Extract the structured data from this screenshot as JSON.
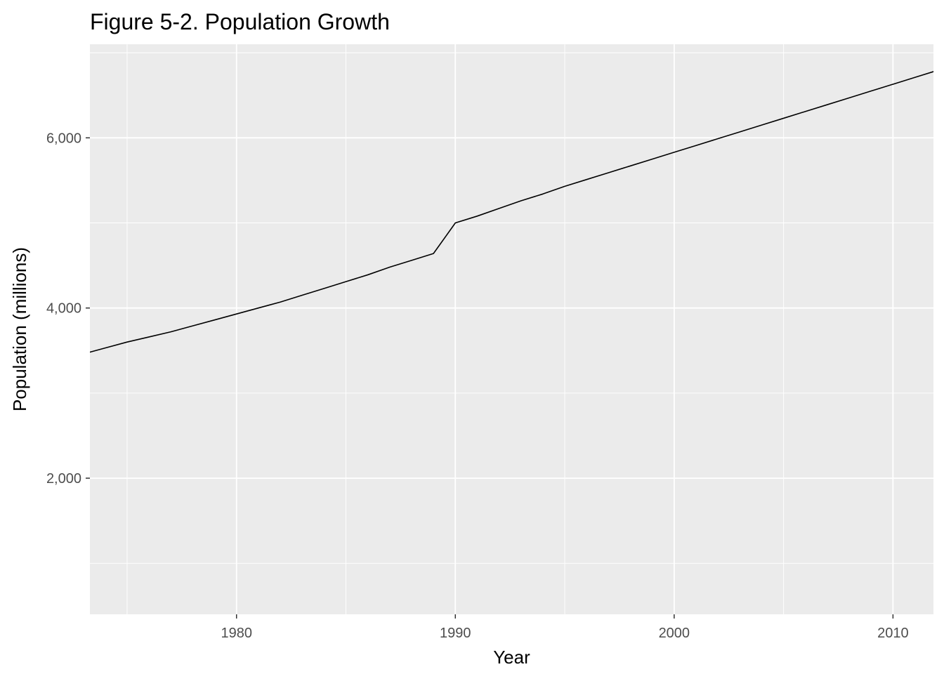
{
  "chart_data": {
    "type": "line",
    "title": "Figure 5-2. Population Growth",
    "xlabel": "Year",
    "ylabel": "Population (millions)",
    "xlim": [
      1973.3,
      1974.85,
      2011.85
    ],
    "ylim": [
      400,
      7100
    ],
    "x_ticks": [
      {
        "value": 1980,
        "label": "1980"
      },
      {
        "value": 1990,
        "label": "1990"
      },
      {
        "value": 2000,
        "label": "2000"
      },
      {
        "value": 2010,
        "label": "2010"
      }
    ],
    "x_minor_ticks": [
      1975,
      1985,
      1995,
      2005
    ],
    "y_ticks": [
      {
        "value": 2000,
        "label": "2,000"
      },
      {
        "value": 4000,
        "label": "4,000"
      },
      {
        "value": 6000,
        "label": "6,000"
      }
    ],
    "y_minor_ticks": [
      1000,
      3000,
      5000,
      7000
    ],
    "grid": true,
    "background": "#ebebeb",
    "gridline_color": "#ffffff",
    "line_color": "#000000",
    "series": [
      {
        "x": [
          1973,
          1974,
          1975,
          1976,
          1977,
          1978,
          1979,
          1980,
          1981,
          1982,
          1983,
          1984,
          1985,
          1986,
          1987,
          1988,
          1989,
          1990,
          1991,
          1992,
          1993,
          1994,
          1995,
          1996,
          1997,
          1998,
          1999,
          2000,
          2001,
          2002,
          2003,
          2004,
          2005,
          2006,
          2007,
          2008,
          2009,
          2010,
          2011,
          2012
        ],
        "y": [
          3460,
          3530,
          3600,
          3660,
          3720,
          3790,
          3860,
          3930,
          4000,
          4070,
          4150,
          4230,
          4310,
          4390,
          4480,
          4560,
          4640,
          5000,
          5080,
          5170,
          5260,
          5340,
          5430,
          5510,
          5590,
          5670,
          5750,
          5830,
          5910,
          5990,
          6070,
          6150,
          6230,
          6310,
          6390,
          6470,
          6550,
          6630,
          6710,
          6790
        ]
      }
    ]
  }
}
